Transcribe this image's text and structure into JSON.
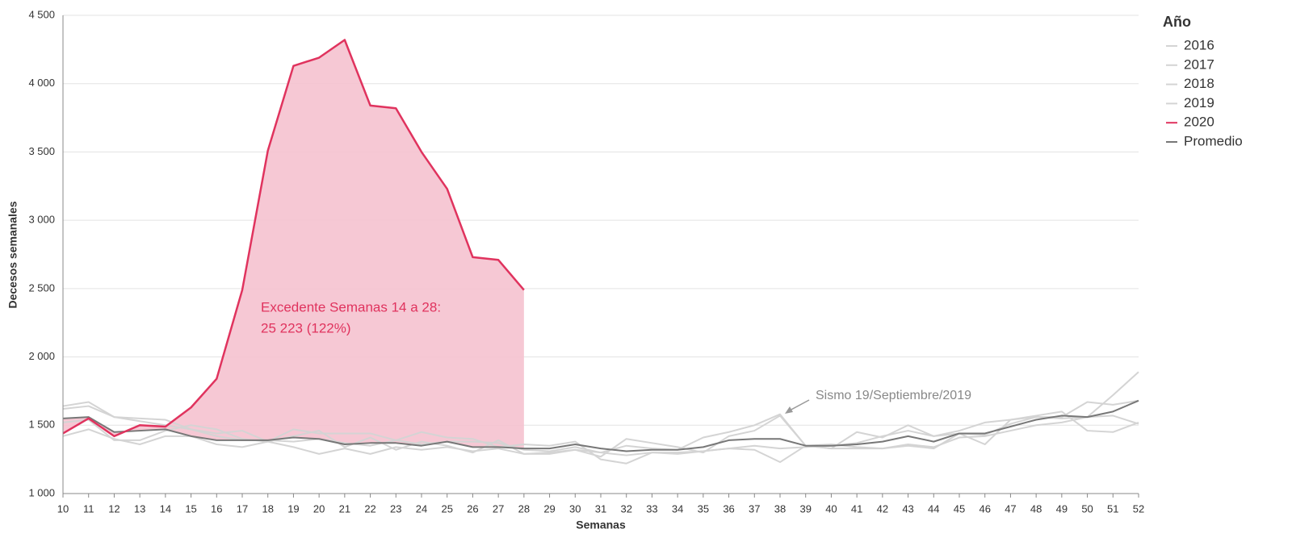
{
  "chart_data": {
    "type": "line",
    "x": [
      10,
      11,
      12,
      13,
      14,
      15,
      16,
      17,
      18,
      19,
      20,
      21,
      22,
      23,
      24,
      25,
      26,
      27,
      28,
      29,
      30,
      31,
      32,
      33,
      34,
      35,
      36,
      37,
      38,
      39,
      40,
      41,
      42,
      43,
      44,
      45,
      46,
      47,
      48,
      49,
      50,
      51,
      52
    ],
    "xlim": [
      10,
      52
    ],
    "xticks": [
      10,
      11,
      12,
      13,
      14,
      15,
      16,
      17,
      18,
      19,
      20,
      21,
      22,
      23,
      24,
      25,
      26,
      27,
      28,
      29,
      30,
      31,
      32,
      33,
      34,
      35,
      36,
      37,
      38,
      39,
      40,
      41,
      42,
      43,
      44,
      45,
      46,
      47,
      48,
      49,
      50,
      51,
      52
    ],
    "ylim": [
      1000,
      4500
    ],
    "yticks": [
      {
        "value": 1000,
        "label": "1 000"
      },
      {
        "value": 1500,
        "label": "1 500"
      },
      {
        "value": 2000,
        "label": "2 000"
      },
      {
        "value": 2500,
        "label": "2 500"
      },
      {
        "value": 3000,
        "label": "3 000"
      },
      {
        "value": 3500,
        "label": "3 500"
      },
      {
        "value": 4000,
        "label": "4 000"
      },
      {
        "value": 4500,
        "label": "4 500"
      }
    ],
    "grid": true,
    "x_label": "Semanas",
    "y_label": "Decesos semanales",
    "legend_title": "Año",
    "legend_position": "right",
    "annotations": [
      "Excedente Semanas 14 a 28:",
      "25 223 (122%)",
      "Sismo 19/Septiembre/2019"
    ],
    "fill_color": "#f5c2cf",
    "series": [
      {
        "name": "2016",
        "color": "#d4d4d4",
        "values": [
          1640,
          1670,
          1560,
          1550,
          1540,
          1470,
          1420,
          1390,
          1390,
          1380,
          1400,
          1370,
          1350,
          1390,
          1360,
          1380,
          1380,
          1370,
          1320,
          1310,
          1340,
          1300,
          1280,
          1300,
          1300,
          1310,
          1330,
          1350,
          1330,
          1340,
          1350,
          1370,
          1420,
          1460,
          1420,
          1440,
          1430,
          1510,
          1560,
          1550,
          1560,
          1570,
          1510
        ]
      },
      {
        "name": "2017",
        "color": "#d4d4d4",
        "values": [
          1420,
          1470,
          1400,
          1360,
          1420,
          1420,
          1360,
          1340,
          1380,
          1470,
          1440,
          1440,
          1440,
          1390,
          1450,
          1410,
          1400,
          1340,
          1360,
          1350,
          1380,
          1250,
          1220,
          1300,
          1290,
          1310,
          1330,
          1320,
          1230,
          1350,
          1330,
          1450,
          1410,
          1500,
          1420,
          1460,
          1520,
          1540,
          1570,
          1600,
          1460,
          1450,
          1520
        ]
      },
      {
        "name": "2018",
        "color": "#d4d4d4",
        "values": [
          1520,
          1540,
          1390,
          1390,
          1460,
          1500,
          1470,
          1400,
          1380,
          1420,
          1460,
          1340,
          1410,
          1320,
          1380,
          1350,
          1300,
          1390,
          1290,
          1300,
          1320,
          1270,
          1400,
          1370,
          1340,
          1300,
          1420,
          1460,
          1570,
          1350,
          1330,
          1330,
          1330,
          1350,
          1330,
          1440,
          1360,
          1540,
          1560,
          1560,
          1670,
          1650,
          1680
        ]
      },
      {
        "name": "2019",
        "color": "#d4d4d4",
        "values": [
          1620,
          1640,
          1560,
          1530,
          1500,
          1470,
          1440,
          1460,
          1380,
          1340,
          1290,
          1330,
          1290,
          1340,
          1320,
          1340,
          1310,
          1330,
          1290,
          1290,
          1320,
          1300,
          1350,
          1330,
          1320,
          1410,
          1450,
          1500,
          1580,
          1350,
          1360,
          1340,
          1330,
          1360,
          1340,
          1410,
          1420,
          1460,
          1500,
          1520,
          1560,
          1720,
          1890
        ]
      },
      {
        "name": "2020",
        "color": "#e0335e",
        "values": [
          1440,
          1550,
          1420,
          1500,
          1490,
          1630,
          1840,
          2490,
          3510,
          4130,
          4190,
          4320,
          3840,
          3820,
          3500,
          3230,
          2730,
          2710,
          2490,
          null,
          null,
          null,
          null,
          null,
          null,
          null,
          null,
          null,
          null,
          null,
          null,
          null,
          null,
          null,
          null,
          null,
          null,
          null,
          null,
          null,
          null,
          null,
          null
        ]
      },
      {
        "name": "Promedio",
        "color": "#777777",
        "values": [
          1550,
          1560,
          1450,
          1460,
          1470,
          1420,
          1390,
          1390,
          1390,
          1410,
          1400,
          1360,
          1370,
          1370,
          1350,
          1380,
          1340,
          1340,
          1330,
          1330,
          1360,
          1330,
          1310,
          1320,
          1320,
          1340,
          1390,
          1400,
          1400,
          1350,
          1350,
          1360,
          1380,
          1420,
          1380,
          1440,
          1440,
          1490,
          1540,
          1570,
          1560,
          1600,
          1680
        ]
      }
    ]
  }
}
